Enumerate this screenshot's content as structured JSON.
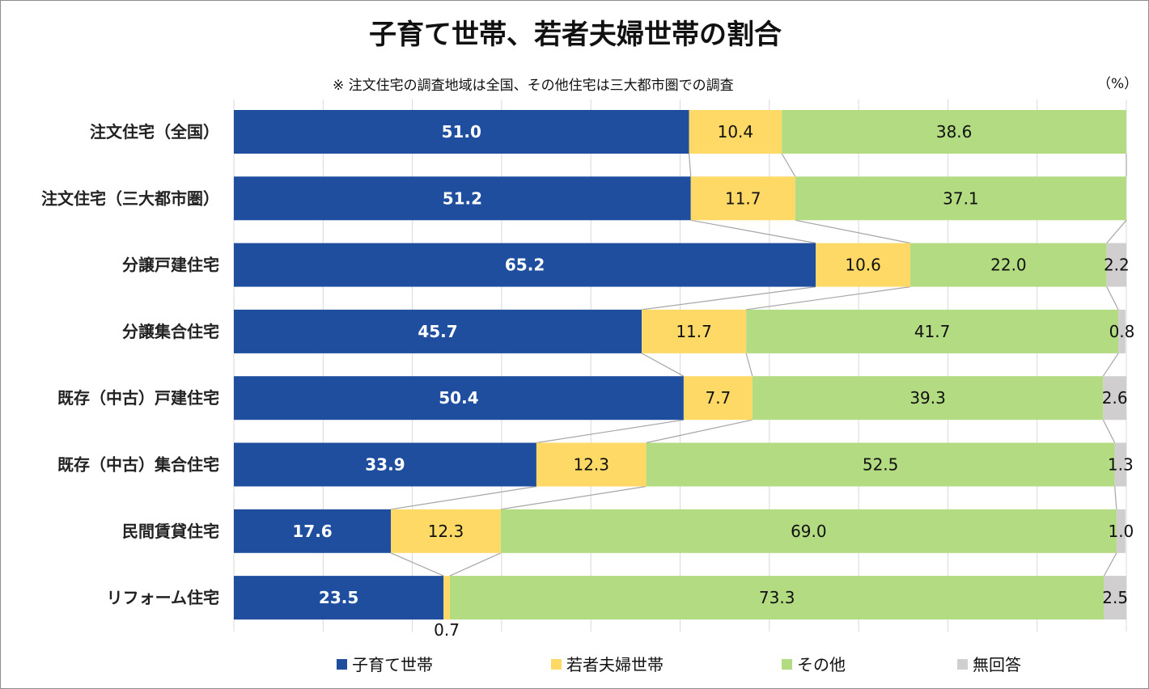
{
  "chart_data": {
    "type": "bar",
    "orientation": "horizontal",
    "stacked": "100%",
    "title": "子育て世帯、若者夫婦世帯の割合",
    "subtitle": "※ 注文住宅の調査地域は全国、その他住宅は三大都市圏での調査",
    "unit": "（%）",
    "xlim": [
      0,
      100
    ],
    "grid": true,
    "legend_position": "bottom",
    "categories": [
      "注文住宅（全国）",
      "注文住宅（三大都市圏）",
      "分譲戸建住宅",
      "分譲集合住宅",
      "既存（中古）戸建住宅",
      "既存（中古）集合住宅",
      "民間賃貸住宅",
      "リフォーム住宅"
    ],
    "series": [
      {
        "name": "子育て世帯",
        "color": "#1F4E9F",
        "values": [
          51.0,
          51.2,
          65.2,
          45.7,
          50.4,
          33.9,
          17.6,
          23.5
        ]
      },
      {
        "name": "若者夫婦世帯",
        "color": "#FFD966",
        "values": [
          10.4,
          11.7,
          10.6,
          11.7,
          7.7,
          12.3,
          12.3,
          0.7
        ]
      },
      {
        "name": "その他",
        "color": "#B3DB82",
        "values": [
          38.6,
          37.1,
          22.0,
          41.7,
          39.3,
          52.5,
          69.0,
          73.3
        ]
      },
      {
        "name": "無回答",
        "color": "#D0CECF",
        "values": [
          null,
          null,
          2.2,
          0.8,
          2.6,
          1.3,
          1.0,
          2.5
        ]
      }
    ]
  }
}
